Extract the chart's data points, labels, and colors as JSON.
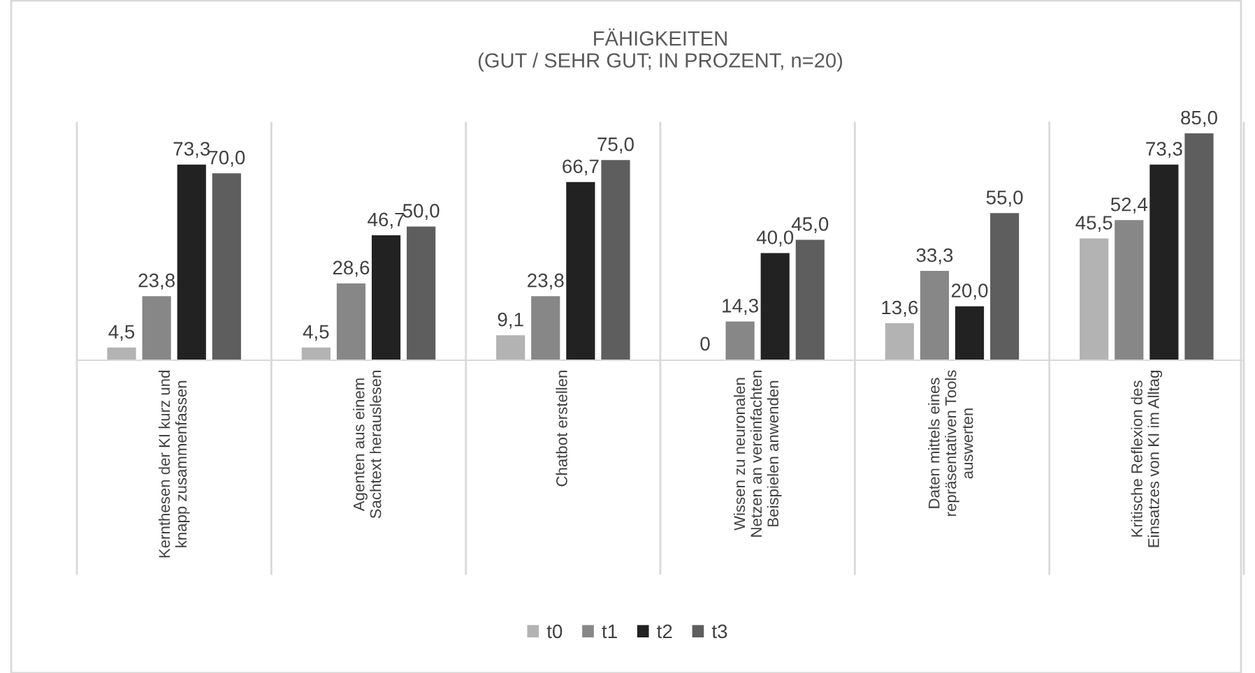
{
  "chart_data": {
    "type": "bar",
    "title": "FÄHIGKEITEN\n(GUT / SEHR GUT; IN PROZENT, n=20)",
    "categories": [
      "Kernthesen der KI kurz und\nknapp zusammenfassen",
      "Agenten aus einem\nSachtext herauslesen",
      "Chatbot erstellen",
      "Wissen zu neuronalen\nNetzen an vereinfachten\nBeispielen anwenden",
      "Daten mittels eines\nrepräsentativen Tools\nauswerten",
      "Kritische Reflexion des\nEinsatzes von KI im Alltag"
    ],
    "series": [
      {
        "name": "t0",
        "color": "#b3b3b3",
        "values": [
          4.5,
          4.5,
          9.1,
          0,
          13.6,
          45.5
        ],
        "value_labels": [
          "4,5",
          "4,5",
          "9,1",
          "0",
          "13,6",
          "45,5"
        ]
      },
      {
        "name": "t1",
        "color": "#878787",
        "values": [
          23.8,
          28.6,
          23.8,
          14.3,
          33.3,
          52.4
        ],
        "value_labels": [
          "23,8",
          "28,6",
          "23,8",
          "14,3",
          "33,3",
          "52,4"
        ]
      },
      {
        "name": "t2",
        "color": "#222222",
        "values": [
          73.3,
          46.7,
          66.7,
          40.0,
          20.0,
          73.3
        ],
        "value_labels": [
          "73,3",
          "46,7",
          "66,7",
          "40,0",
          "20,0",
          "73,3"
        ]
      },
      {
        "name": "t3",
        "color": "#5e5e5e",
        "values": [
          70.0,
          50.0,
          75.0,
          45.0,
          55.0,
          85.0
        ],
        "value_labels": [
          "70,0",
          "50,0",
          "75,0",
          "45,0",
          "55,0",
          "85,0"
        ]
      }
    ],
    "legend": "bottom"
  }
}
